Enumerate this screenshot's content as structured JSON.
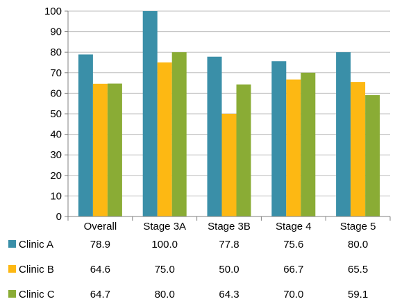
{
  "chart_data": {
    "type": "bar",
    "title": "",
    "xlabel": "",
    "ylabel": "",
    "ylim": [
      0,
      100
    ],
    "yticks": [
      0,
      10,
      20,
      30,
      40,
      50,
      60,
      70,
      80,
      90,
      100
    ],
    "grid": true,
    "legend": "data-table-below",
    "categories": [
      "Overall",
      "Stage 3A",
      "Stage 3B",
      "Stage 4",
      "Stage 5"
    ],
    "series": [
      {
        "name": "Clinic A",
        "color": "#3a8fa8",
        "values": [
          78.9,
          100.0,
          77.8,
          75.6,
          80.0
        ],
        "labels": [
          "78.9",
          "100.0",
          "77.8",
          "75.6",
          "80.0"
        ]
      },
      {
        "name": "Clinic B",
        "color": "#fdb813",
        "values": [
          64.6,
          75.0,
          50.0,
          66.7,
          65.5
        ],
        "labels": [
          "64.6",
          "75.0",
          "50.0",
          "66.7",
          "65.5"
        ]
      },
      {
        "name": "Clinic C",
        "color": "#8aac35",
        "values": [
          64.7,
          80.0,
          64.3,
          70.0,
          59.1
        ],
        "labels": [
          "64.7",
          "80.0",
          "64.3",
          "70.0",
          "59.1"
        ]
      }
    ]
  }
}
